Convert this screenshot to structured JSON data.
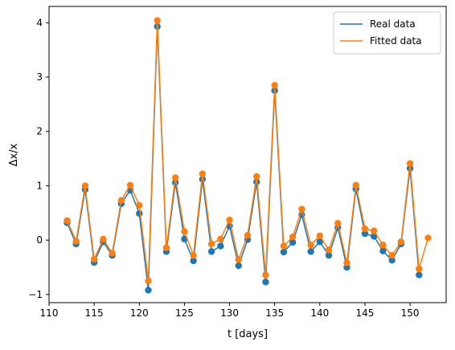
{
  "chart_data": {
    "type": "line",
    "xlabel": "t [days]",
    "ylabel": "Δx/x",
    "xlim": [
      110,
      154
    ],
    "ylim": [
      -1.15,
      4.3
    ],
    "xticks": [
      110,
      115,
      120,
      125,
      130,
      135,
      140,
      145,
      150
    ],
    "yticks": [
      -1,
      0,
      1,
      2,
      3,
      4
    ],
    "grid": false,
    "legend_position": "top-right",
    "series": [
      {
        "name": "Real data",
        "color": "#1f77b4",
        "markers": true,
        "x": [
          112,
          113,
          114,
          115,
          116,
          117,
          118,
          119,
          120,
          121,
          122,
          123,
          124,
          125,
          126,
          127,
          128,
          129,
          130,
          131,
          132,
          133,
          134,
          135,
          136,
          137,
          138,
          139,
          140,
          141,
          142,
          143,
          144,
          145,
          146,
          147,
          148,
          149,
          150,
          151
        ],
        "y": [
          0.32,
          -0.07,
          0.93,
          -0.41,
          -0.03,
          -0.28,
          0.67,
          0.92,
          0.49,
          -0.92,
          3.93,
          -0.21,
          1.06,
          0.02,
          -0.38,
          1.12,
          -0.21,
          -0.11,
          0.26,
          -0.47,
          0.01,
          1.07,
          -0.77,
          2.75,
          -0.22,
          -0.04,
          0.47,
          -0.21,
          -0.03,
          -0.28,
          0.23,
          -0.5,
          0.94,
          0.12,
          0.07,
          -0.2,
          -0.37,
          -0.07,
          1.32,
          -0.64
        ]
      },
      {
        "name": "Fitted data",
        "color": "#ff7f0e",
        "markers": true,
        "x": [
          112,
          113,
          114,
          115,
          116,
          117,
          118,
          119,
          120,
          121,
          122,
          123,
          124,
          125,
          126,
          127,
          128,
          129,
          130,
          131,
          132,
          133,
          134,
          135,
          136,
          137,
          138,
          139,
          140,
          141,
          142,
          143,
          144,
          145,
          146,
          147,
          148,
          149,
          150,
          151,
          152
        ],
        "y": [
          0.36,
          -0.02,
          1.0,
          -0.35,
          0.02,
          -0.24,
          0.73,
          1.01,
          0.64,
          -0.75,
          4.04,
          -0.14,
          1.15,
          0.16,
          -0.28,
          1.22,
          -0.07,
          0.02,
          0.37,
          -0.36,
          0.09,
          1.17,
          -0.64,
          2.85,
          -0.11,
          0.06,
          0.57,
          -0.09,
          0.08,
          -0.18,
          0.31,
          -0.42,
          1.01,
          0.21,
          0.17,
          -0.09,
          -0.28,
          -0.03,
          1.41,
          -0.53,
          0.04
        ]
      }
    ]
  }
}
